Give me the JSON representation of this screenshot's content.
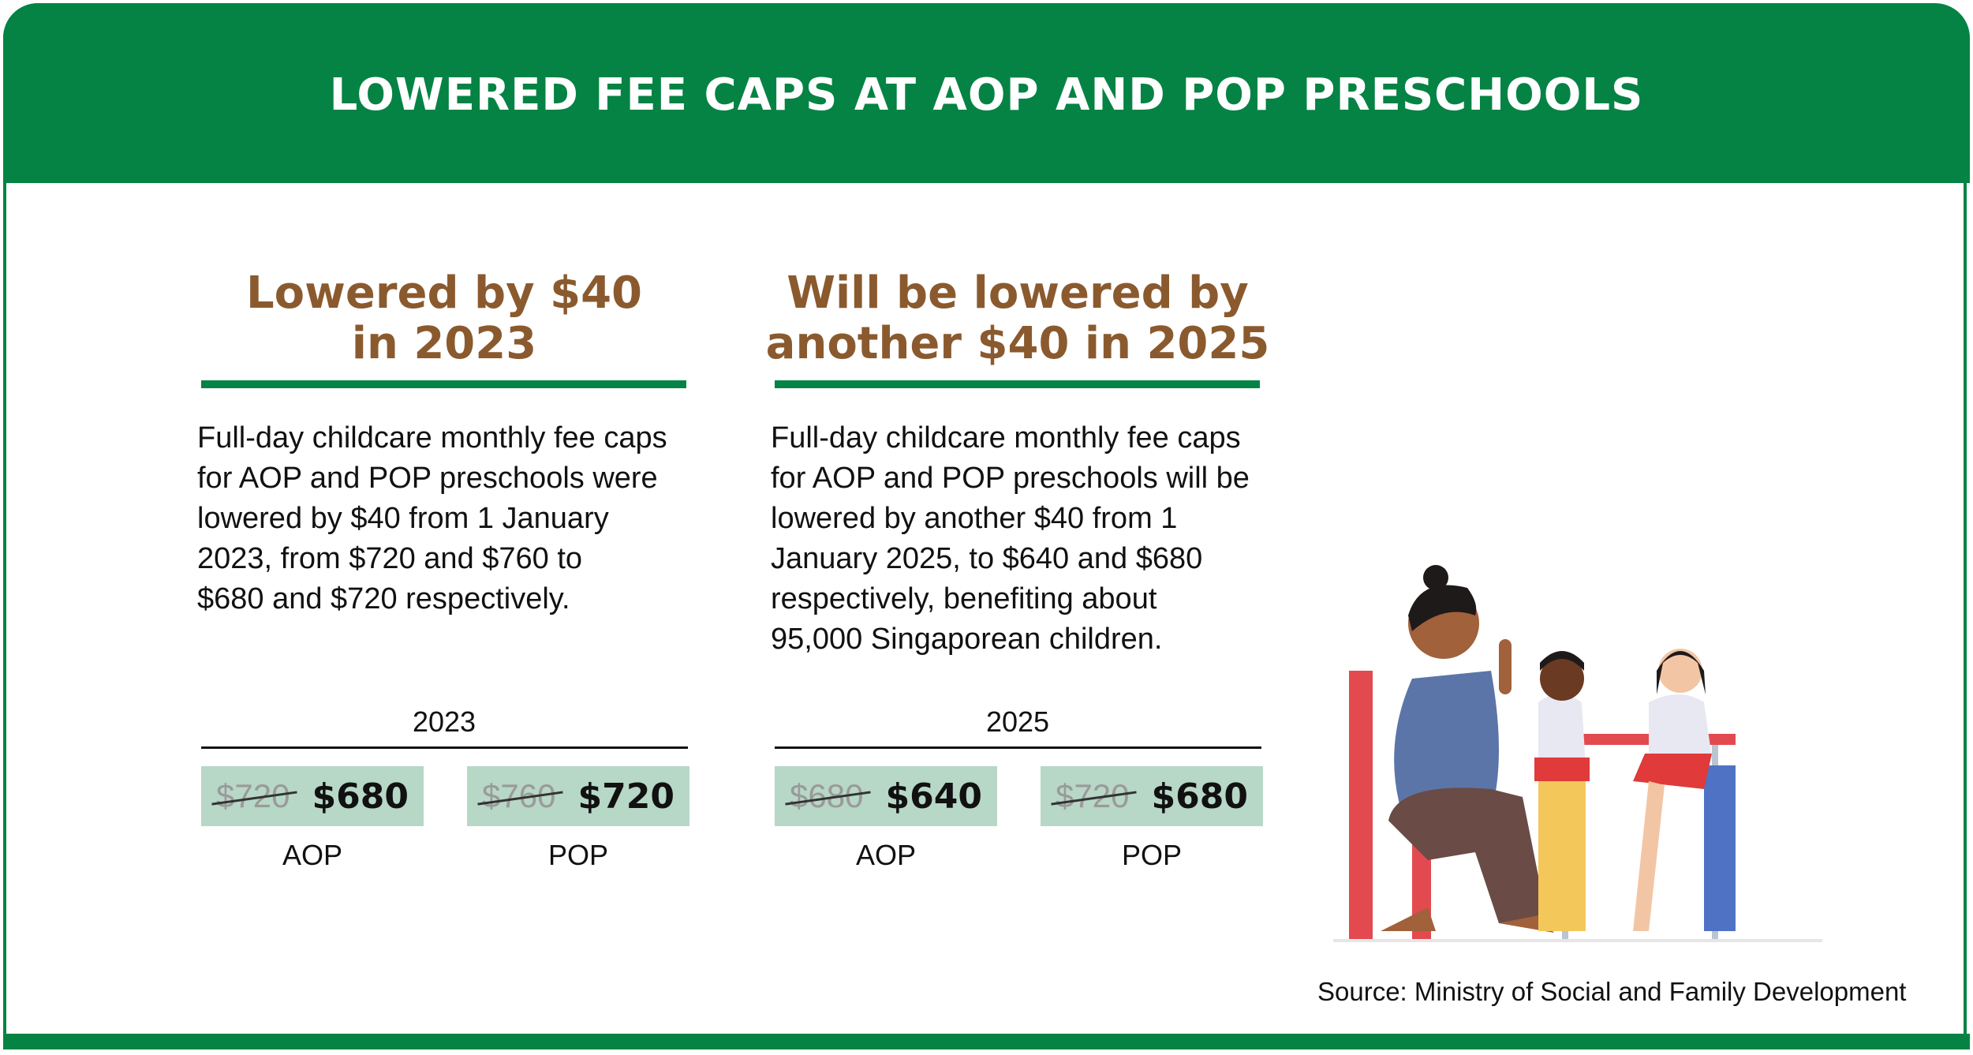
{
  "title": "LOWERED FEE CAPS AT AOP AND POP PRESCHOOLS",
  "panels": [
    {
      "heading": [
        "Lowered by $40",
        "in 2023"
      ],
      "body": [
        "Full-day childcare monthly fee caps",
        "for AOP and POP preschools were",
        "lowered by $40 from 1 January",
        "2023, from $720 and $760 to",
        "$680 and $720 respectively."
      ],
      "year": "2023",
      "items": [
        {
          "old": "$720",
          "new": "$680",
          "label": "AOP"
        },
        {
          "old": "$760",
          "new": "$720",
          "label": "POP"
        }
      ]
    },
    {
      "heading": [
        "Will be lowered by",
        "another $40 in 2025"
      ],
      "body": [
        "Full-day childcare monthly fee caps",
        "for AOP and POP preschools will be",
        "lowered by another $40 from 1",
        "January 2025, to $640 and $680",
        "respectively, benefiting about",
        "95,000 Singaporean children."
      ],
      "year": "2025",
      "items": [
        {
          "old": "$680",
          "new": "$640",
          "label": "AOP"
        },
        {
          "old": "$720",
          "new": "$680",
          "label": "POP"
        }
      ]
    }
  ],
  "source": "Source: Ministry of Social and Family Development"
}
